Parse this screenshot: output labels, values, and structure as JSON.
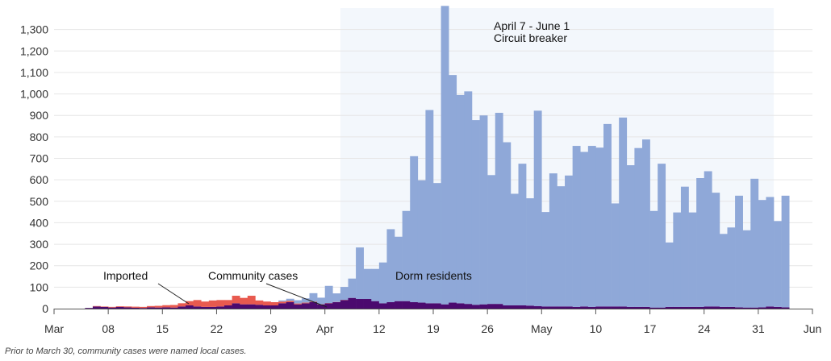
{
  "chart_data": {
    "type": "bar",
    "stacked": true,
    "x_start_date": "2020-03-01",
    "x_end_date": "2020-06-03",
    "ylim": [
      0,
      1400
    ],
    "yticks": [
      0,
      100,
      200,
      300,
      400,
      500,
      600,
      700,
      800,
      900,
      1000,
      1100,
      1200,
      1300
    ],
    "ytick_labels": [
      "0",
      "100",
      "200",
      "300",
      "400",
      "500",
      "600",
      "700",
      "800",
      "900",
      "1,000",
      "1,100",
      "1,200",
      "1,300"
    ],
    "xticks": [
      {
        "date": "2020-03-01",
        "label": "Mar"
      },
      {
        "date": "2020-03-08",
        "label": "08"
      },
      {
        "date": "2020-03-15",
        "label": "15"
      },
      {
        "date": "2020-03-22",
        "label": "22"
      },
      {
        "date": "2020-03-29",
        "label": "29"
      },
      {
        "date": "2020-04-05",
        "label": "Apr"
      },
      {
        "date": "2020-04-12",
        "label": "12"
      },
      {
        "date": "2020-04-19",
        "label": "19"
      },
      {
        "date": "2020-04-26",
        "label": "26"
      },
      {
        "date": "2020-05-03",
        "label": "May"
      },
      {
        "date": "2020-05-10",
        "label": "10"
      },
      {
        "date": "2020-05-17",
        "label": "17"
      },
      {
        "date": "2020-05-24",
        "label": "24"
      },
      {
        "date": "2020-05-31",
        "label": "31"
      },
      {
        "date": "2020-06-07",
        "label": "Jun"
      }
    ],
    "dates": [
      "2020-03-01",
      "2020-03-02",
      "2020-03-03",
      "2020-03-04",
      "2020-03-05",
      "2020-03-06",
      "2020-03-07",
      "2020-03-08",
      "2020-03-09",
      "2020-03-10",
      "2020-03-11",
      "2020-03-12",
      "2020-03-13",
      "2020-03-14",
      "2020-03-15",
      "2020-03-16",
      "2020-03-17",
      "2020-03-18",
      "2020-03-19",
      "2020-03-20",
      "2020-03-21",
      "2020-03-22",
      "2020-03-23",
      "2020-03-24",
      "2020-03-25",
      "2020-03-26",
      "2020-03-27",
      "2020-03-28",
      "2020-03-29",
      "2020-03-30",
      "2020-03-31",
      "2020-04-01",
      "2020-04-02",
      "2020-04-03",
      "2020-04-04",
      "2020-04-05",
      "2020-04-06",
      "2020-04-07",
      "2020-04-08",
      "2020-04-09",
      "2020-04-10",
      "2020-04-11",
      "2020-04-12",
      "2020-04-13",
      "2020-04-14",
      "2020-04-15",
      "2020-04-16",
      "2020-04-17",
      "2020-04-18",
      "2020-04-19",
      "2020-04-20",
      "2020-04-21",
      "2020-04-22",
      "2020-04-23",
      "2020-04-24",
      "2020-04-25",
      "2020-04-26",
      "2020-04-27",
      "2020-04-28",
      "2020-04-29",
      "2020-04-30",
      "2020-05-01",
      "2020-05-02",
      "2020-05-03",
      "2020-05-04",
      "2020-05-05",
      "2020-05-06",
      "2020-05-07",
      "2020-05-08",
      "2020-05-09",
      "2020-05-10",
      "2020-05-11",
      "2020-05-12",
      "2020-05-13",
      "2020-05-14",
      "2020-05-15",
      "2020-05-16",
      "2020-05-17",
      "2020-05-18",
      "2020-05-19",
      "2020-05-20",
      "2020-05-21",
      "2020-05-22",
      "2020-05-23",
      "2020-05-24",
      "2020-05-25",
      "2020-05-26",
      "2020-05-27",
      "2020-05-28",
      "2020-05-29",
      "2020-05-30",
      "2020-05-31",
      "2020-06-01",
      "2020-06-02",
      "2020-06-03"
    ],
    "series": [
      {
        "name": "Community cases",
        "color": "#4b0a6e",
        "values": [
          0,
          0,
          0,
          0,
          3,
          10,
          8,
          5,
          8,
          6,
          4,
          3,
          6,
          5,
          6,
          5,
          10,
          15,
          10,
          8,
          8,
          10,
          15,
          25,
          20,
          20,
          18,
          15,
          15,
          25,
          30,
          20,
          25,
          30,
          20,
          25,
          30,
          40,
          50,
          45,
          45,
          35,
          25,
          30,
          35,
          35,
          30,
          28,
          25,
          25,
          20,
          28,
          25,
          22,
          18,
          20,
          22,
          22,
          15,
          15,
          15,
          14,
          12,
          10,
          10,
          10,
          10,
          8,
          10,
          8,
          10,
          10,
          10,
          10,
          8,
          8,
          8,
          5,
          5,
          8,
          8,
          8,
          8,
          8,
          10,
          10,
          8,
          8,
          6,
          5,
          5,
          6,
          10,
          8,
          6
        ]
      },
      {
        "name": "Imported",
        "color": "#e85a4f",
        "values": [
          0,
          0,
          0,
          0,
          0,
          2,
          2,
          3,
          3,
          4,
          5,
          5,
          6,
          8,
          10,
          12,
          15,
          20,
          30,
          25,
          30,
          30,
          25,
          35,
          30,
          40,
          20,
          18,
          15,
          8,
          6,
          4,
          3,
          2,
          1,
          1,
          1,
          1,
          0,
          0,
          0,
          0,
          0,
          0,
          0,
          0,
          0,
          0,
          0,
          0,
          0,
          0,
          0,
          0,
          0,
          0,
          0,
          0,
          0,
          0,
          0,
          0,
          0,
          0,
          0,
          0,
          0,
          0,
          0,
          0,
          0,
          0,
          0,
          0,
          0,
          0,
          0,
          0,
          0,
          0,
          0,
          0,
          0,
          0,
          0,
          0,
          0,
          0,
          0,
          0,
          0,
          0,
          0,
          0,
          0
        ]
      },
      {
        "name": "Dorm residents",
        "color": "#8fa8d8",
        "values": [
          0,
          0,
          0,
          0,
          0,
          0,
          0,
          0,
          0,
          0,
          0,
          0,
          0,
          0,
          0,
          0,
          0,
          0,
          0,
          0,
          0,
          0,
          0,
          0,
          0,
          0,
          0,
          0,
          0,
          5,
          10,
          15,
          20,
          40,
          30,
          80,
          40,
          60,
          90,
          240,
          140,
          150,
          190,
          340,
          300,
          420,
          680,
          570,
          900,
          560,
          1390,
          1060,
          970,
          990,
          860,
          880,
          600,
          890,
          760,
          520,
          660,
          500,
          910,
          440,
          620,
          560,
          610,
          750,
          720,
          750,
          740,
          850,
          480,
          880,
          660,
          740,
          780,
          450,
          670,
          300,
          440,
          560,
          440,
          600,
          630,
          530,
          340,
          370,
          520,
          360,
          600,
          500,
          510,
          400,
          520
        ]
      }
    ],
    "shaded_period": {
      "start": "2020-04-07",
      "end": "2020-06-01",
      "color": "#f3f7fc"
    },
    "annotations": {
      "period_dates": "April 7 - June 1",
      "period_name": "Circuit breaker",
      "imported": "Imported",
      "community": "Community cases",
      "dorm": "Dorm residents"
    },
    "footnote": "Prior to March 30, community cases were named local cases.",
    "grid": true,
    "xlabel": "",
    "ylabel": ""
  }
}
